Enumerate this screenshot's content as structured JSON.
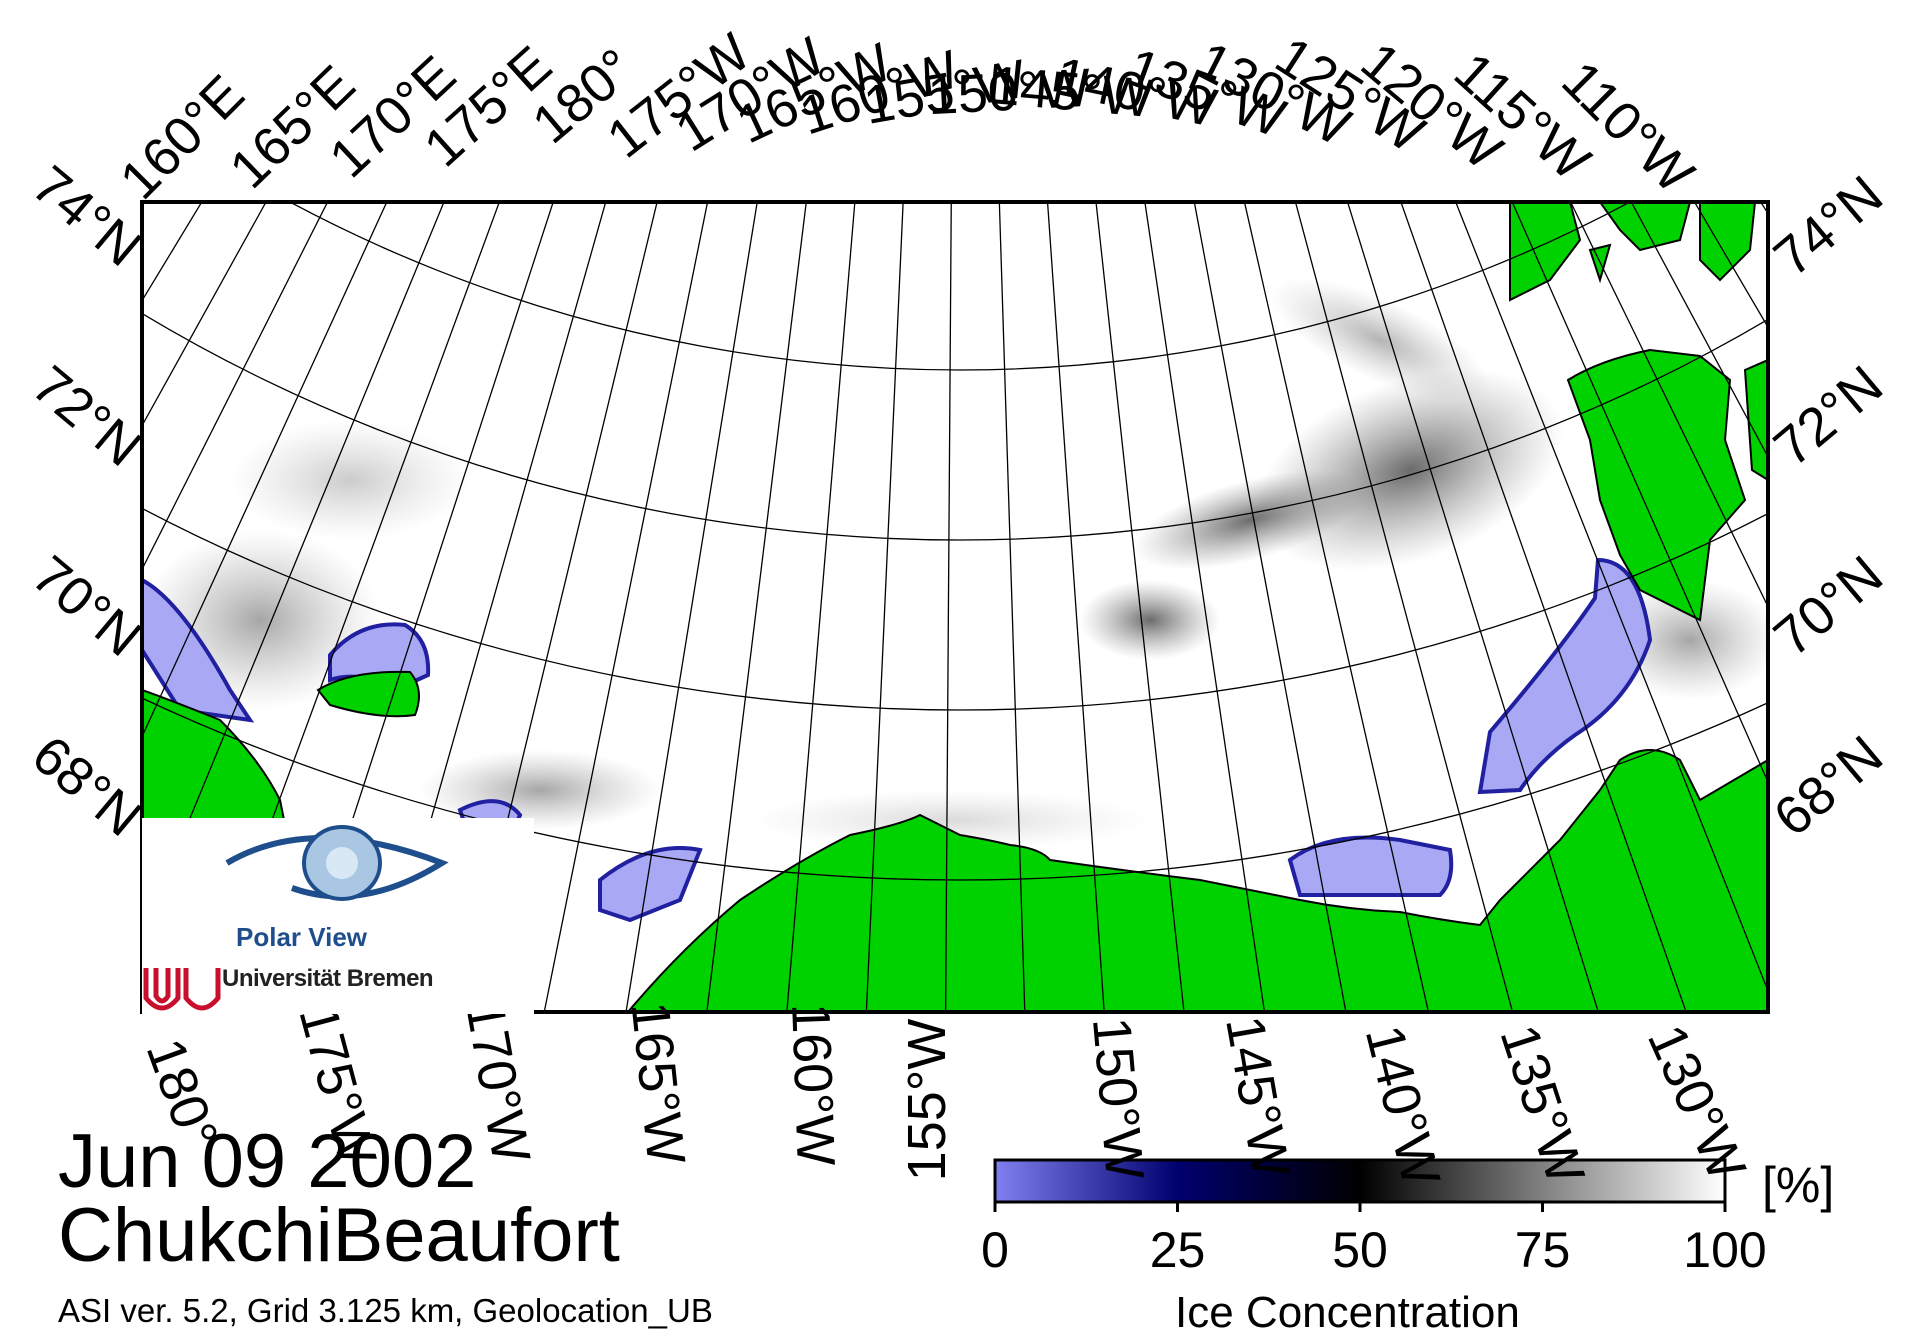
{
  "map": {
    "date": "Jun 09 2002",
    "region": "ChukchiBeaufort",
    "info": "ASI ver. 5.2,  Grid 3.125 km, Geolocation_UB",
    "top_lon_labels": [
      "160°E",
      "165°E",
      "170°E",
      "175°E",
      "180°",
      "175°W",
      "170°W",
      "165°W",
      "160°W",
      "155°W",
      "150°W",
      "145°W",
      "140°W",
      "135°W",
      "130°W",
      "125°W",
      "120°W",
      "115°W",
      "110°W"
    ],
    "bottom_lon_labels": [
      "180°",
      "175°W",
      "170°W",
      "165°W",
      "160°W",
      "155°W",
      "150°W",
      "145°W",
      "140°W",
      "135°W",
      "130°W"
    ],
    "left_lat_labels": [
      "74°N",
      "72°N",
      "70°N",
      "68°N"
    ],
    "right_lat_labels": [
      "74°N",
      "72°N",
      "70°N",
      "68°N"
    ],
    "land_color": "#00d200",
    "ocean_color": "#ffffff",
    "low_ice_color": "#a8a8f5"
  },
  "colorbar": {
    "label": "Ice Concentration",
    "unit": "[%]",
    "ticks": [
      "0",
      "25",
      "50",
      "75",
      "100"
    ],
    "range": [
      0,
      100
    ],
    "stops": [
      "#8080f0",
      "#00006e",
      "#000000",
      "#808080",
      "#ffffff"
    ]
  },
  "logo": {
    "title": "Polar View",
    "institution": "Universität Bremen"
  }
}
